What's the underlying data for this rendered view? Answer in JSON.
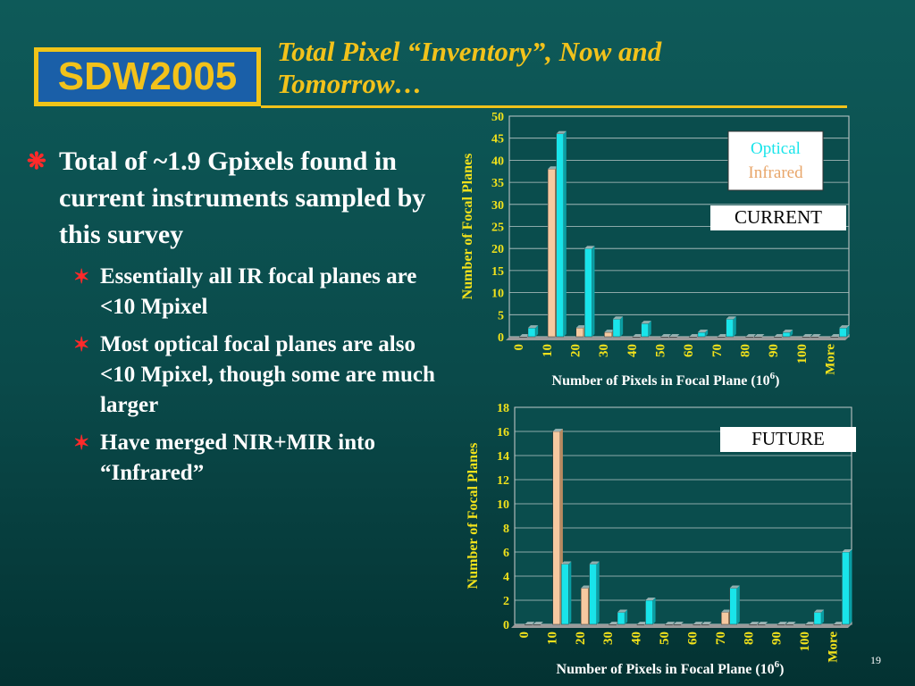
{
  "logo_text": "SDW2005",
  "title": "Total Pixel “Inventory”, Now and Tomorrow…",
  "bullets": {
    "main": "Total of ~1.9 Gpixels found in current instruments sampled by this survey",
    "sub": [
      "Essentially all IR focal planes are <10 Mpixel",
      "Most optical focal planes are also <10 Mpixel, though some are much larger",
      "Have merged NIR+MIR into “Infrared”"
    ]
  },
  "page_number": "19",
  "colors": {
    "optical": "#19e4ea",
    "infrared": "#f6c9a0",
    "accent": "#f2c21b",
    "bullet": "#ff2a2a"
  },
  "chart_data": [
    {
      "type": "bar",
      "title": "CURRENT",
      "xlabel": "Number of Pixels in Focal Plane (10",
      "xlabel_sup": "6",
      "xlabel_end": ")",
      "ylabel": "Number of Focal Planes",
      "ylim": [
        0,
        50
      ],
      "yticks": [
        0,
        5,
        10,
        15,
        20,
        25,
        30,
        35,
        40,
        45,
        50
      ],
      "categories": [
        "0",
        "10",
        "20",
        "30",
        "40",
        "50",
        "60",
        "70",
        "80",
        "90",
        "100",
        "More"
      ],
      "legend": [
        "Optical",
        "Infrared"
      ],
      "legend_position": "top-right",
      "series": [
        {
          "name": "Infrared",
          "values": [
            0,
            38,
            2,
            1,
            0,
            0,
            0,
            0,
            0,
            0,
            0,
            0
          ]
        },
        {
          "name": "Optical",
          "values": [
            2,
            46,
            20,
            4,
            3,
            0,
            1,
            4,
            0,
            1,
            0,
            2
          ]
        }
      ]
    },
    {
      "type": "bar",
      "title": "FUTURE",
      "xlabel": "Number of Pixels in Focal Plane (10",
      "xlabel_sup": "6",
      "xlabel_end": ")",
      "ylabel": "Number of Focal Planes",
      "ylim": [
        0,
        18
      ],
      "yticks": [
        0,
        2,
        4,
        6,
        8,
        10,
        12,
        14,
        16,
        18
      ],
      "categories": [
        "0",
        "10",
        "20",
        "30",
        "40",
        "50",
        "60",
        "70",
        "80",
        "90",
        "100",
        "More"
      ],
      "series": [
        {
          "name": "Infrared",
          "values": [
            0,
            16,
            3,
            0,
            0,
            0,
            0,
            1,
            0,
            0,
            0,
            0
          ]
        },
        {
          "name": "Optical",
          "values": [
            0,
            5,
            5,
            1,
            2,
            0,
            0,
            3,
            0,
            0,
            1,
            6
          ]
        }
      ]
    }
  ]
}
